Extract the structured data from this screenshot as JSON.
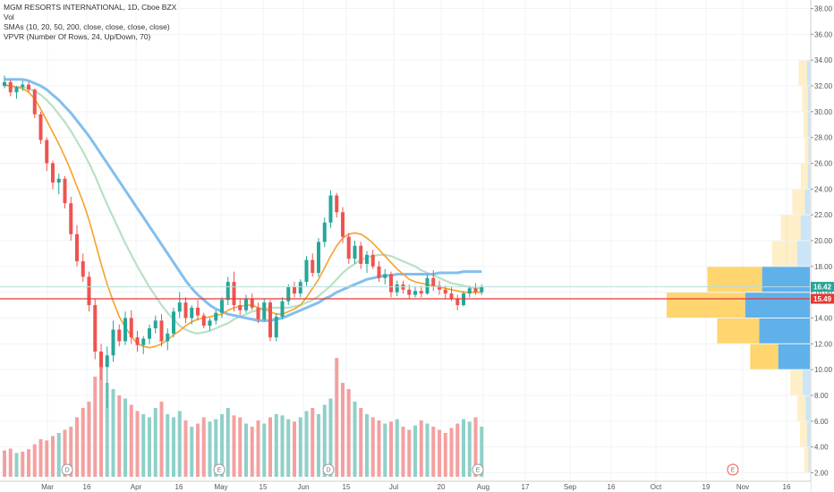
{
  "legend": {
    "title": "MGM RESORTS INTERNATIONAL, 1D, Cboe BZX",
    "vol": "Vol",
    "smas": "SMAs (10, 20, 50, 200, close, close, close, close)",
    "vpvr": "VPVR (Number Of Rows, 24, Up/Down, 70)"
  },
  "colors": {
    "up": "#26a69a",
    "down": "#ef5350",
    "vol_up": "#8fd0c8",
    "vol_down": "#f4a0a0",
    "sma10": "#f7a12b",
    "sma20": "#b9e0c4",
    "sma50": "#82bfee",
    "last_price": "#26a69a",
    "ref_price": "#e53935",
    "vp_up": "#4fa8e8",
    "vp_down": "#ffd060"
  },
  "chart_data": {
    "type": "candlestick",
    "y_ticks": [
      "2.00",
      "4.00",
      "6.00",
      "8.00",
      "10.00",
      "12.00",
      "14.00",
      "16.00",
      "18.00",
      "20.00",
      "22.00",
      "24.00",
      "26.00",
      "28.00",
      "30.00",
      "32.00",
      "34.00",
      "36.00",
      "38.00"
    ],
    "ylim": [
      2,
      38
    ],
    "x_ticks": [
      "Mar",
      "16",
      "Apr",
      "16",
      "May",
      "15",
      "Jun",
      "15",
      "Jul",
      "20",
      "Aug",
      "17",
      "Sep",
      "16",
      "Oct",
      "19",
      "Nov",
      "16"
    ],
    "last_price": 16.42,
    "last_price_label": "16.42",
    "ref_price": 15.49,
    "ref_price_label": "15.49",
    "events": [
      {
        "label": "D",
        "date": "Mar"
      },
      {
        "label": "E",
        "date": "Apr-end"
      },
      {
        "label": "D",
        "date": "Jun"
      },
      {
        "label": "E",
        "date": "Jul-end"
      },
      {
        "label": "E",
        "date": "Oct-end"
      }
    ],
    "candles": [
      [
        32.0,
        32.8,
        31.8,
        32.3
      ],
      [
        32.3,
        32.5,
        31.2,
        31.5
      ],
      [
        31.5,
        32.0,
        31.0,
        31.9
      ],
      [
        31.9,
        32.4,
        31.6,
        32.1
      ],
      [
        32.1,
        32.3,
        31.5,
        31.7
      ],
      [
        31.7,
        31.8,
        29.5,
        29.8
      ],
      [
        29.8,
        30.0,
        27.5,
        27.8
      ],
      [
        27.8,
        28.0,
        25.4,
        26.0
      ],
      [
        26.0,
        26.2,
        24.0,
        24.5
      ],
      [
        24.5,
        25.2,
        23.6,
        24.8
      ],
      [
        24.8,
        25.0,
        22.5,
        22.9
      ],
      [
        22.9,
        23.4,
        20.0,
        20.5
      ],
      [
        20.5,
        21.2,
        18.0,
        18.4
      ],
      [
        18.4,
        19.0,
        16.8,
        17.2
      ],
      [
        17.2,
        17.6,
        14.5,
        15.0
      ],
      [
        15.0,
        15.5,
        10.8,
        11.4
      ],
      [
        11.4,
        12.0,
        9.2,
        10.2
      ],
      [
        10.2,
        11.8,
        7.0,
        11.1
      ],
      [
        11.1,
        13.8,
        10.6,
        13.1
      ],
      [
        13.1,
        13.5,
        11.8,
        12.2
      ],
      [
        12.2,
        14.5,
        11.9,
        14.0
      ],
      [
        14.0,
        14.6,
        12.0,
        12.5
      ],
      [
        12.5,
        13.0,
        11.4,
        11.9
      ],
      [
        11.9,
        12.6,
        11.2,
        12.4
      ],
      [
        12.4,
        13.5,
        12.0,
        13.2
      ],
      [
        13.2,
        14.2,
        12.8,
        13.8
      ],
      [
        13.8,
        14.3,
        11.8,
        12.2
      ],
      [
        12.2,
        13.2,
        11.5,
        12.8
      ],
      [
        12.8,
        14.8,
        12.5,
        14.5
      ],
      [
        14.5,
        16.0,
        14.0,
        15.2
      ],
      [
        15.2,
        15.6,
        13.6,
        14.0
      ],
      [
        14.0,
        15.0,
        13.5,
        14.8
      ],
      [
        14.8,
        15.4,
        13.8,
        14.2
      ],
      [
        14.2,
        14.4,
        13.2,
        13.4
      ],
      [
        13.4,
        14.0,
        13.0,
        13.8
      ],
      [
        13.8,
        14.6,
        13.5,
        14.4
      ],
      [
        14.4,
        15.6,
        14.0,
        15.4
      ],
      [
        15.4,
        17.2,
        15.0,
        16.8
      ],
      [
        16.8,
        17.6,
        14.5,
        15.0
      ],
      [
        15.0,
        15.5,
        14.2,
        14.6
      ],
      [
        14.6,
        15.8,
        14.4,
        15.5
      ],
      [
        15.5,
        15.9,
        14.6,
        14.8
      ],
      [
        14.8,
        15.2,
        13.6,
        13.9
      ],
      [
        13.9,
        15.5,
        13.7,
        15.2
      ],
      [
        15.2,
        15.4,
        12.2,
        12.5
      ],
      [
        12.5,
        14.4,
        12.2,
        14.1
      ],
      [
        14.1,
        15.6,
        13.9,
        15.3
      ],
      [
        15.3,
        16.6,
        15.0,
        16.4
      ],
      [
        16.4,
        16.8,
        15.6,
        15.9
      ],
      [
        15.9,
        17.0,
        15.6,
        16.8
      ],
      [
        16.8,
        18.8,
        16.5,
        18.5
      ],
      [
        18.5,
        19.0,
        17.2,
        17.5
      ],
      [
        17.5,
        20.2,
        17.2,
        19.9
      ],
      [
        19.9,
        21.8,
        19.5,
        21.4
      ],
      [
        21.4,
        23.9,
        21.0,
        23.5
      ],
      [
        23.5,
        23.7,
        21.8,
        22.2
      ],
      [
        22.2,
        22.6,
        19.8,
        20.3
      ],
      [
        20.3,
        20.6,
        18.2,
        18.6
      ],
      [
        18.6,
        20.0,
        18.2,
        19.6
      ],
      [
        19.6,
        19.9,
        17.8,
        18.2
      ],
      [
        18.2,
        19.2,
        17.5,
        18.9
      ],
      [
        18.9,
        19.3,
        17.8,
        18.0
      ],
      [
        18.0,
        18.4,
        16.8,
        17.1
      ],
      [
        17.1,
        17.8,
        16.6,
        17.4
      ],
      [
        17.4,
        17.6,
        15.6,
        16.0
      ],
      [
        16.0,
        16.9,
        15.7,
        16.6
      ],
      [
        16.6,
        16.9,
        15.9,
        16.2
      ],
      [
        16.2,
        16.6,
        15.5,
        15.8
      ],
      [
        15.8,
        16.4,
        15.6,
        16.1
      ],
      [
        16.1,
        16.5,
        15.6,
        15.9
      ],
      [
        15.9,
        17.4,
        15.8,
        17.1
      ],
      [
        17.1,
        17.7,
        16.1,
        16.5
      ],
      [
        16.5,
        16.9,
        15.8,
        16.2
      ],
      [
        16.2,
        16.5,
        15.5,
        15.9
      ],
      [
        15.9,
        16.4,
        15.3,
        15.5
      ],
      [
        15.5,
        15.8,
        14.6,
        15.0
      ],
      [
        15.0,
        16.1,
        14.9,
        15.9
      ],
      [
        15.9,
        16.5,
        15.6,
        16.3
      ],
      [
        16.3,
        16.7,
        15.8,
        16.0
      ],
      [
        16.0,
        16.6,
        15.8,
        16.42
      ]
    ],
    "volume": [
      42,
      45,
      38,
      40,
      44,
      52,
      60,
      58,
      65,
      70,
      75,
      80,
      95,
      110,
      120,
      160,
      185,
      150,
      140,
      130,
      125,
      115,
      105,
      100,
      95,
      110,
      120,
      100,
      95,
      105,
      90,
      80,
      85,
      95,
      88,
      92,
      100,
      110,
      98,
      95,
      85,
      80,
      90,
      85,
      95,
      100,
      98,
      92,
      88,
      95,
      105,
      110,
      100,
      115,
      125,
      190,
      150,
      140,
      120,
      110,
      100,
      95,
      90,
      85,
      88,
      92,
      80,
      75,
      82,
      90,
      85,
      80,
      75,
      70,
      78,
      85,
      92,
      88,
      95,
      80
    ],
    "volume_up": [
      false,
      false,
      true,
      false,
      false,
      false,
      false,
      false,
      false,
      true,
      false,
      false,
      false,
      false,
      false,
      false,
      false,
      true,
      true,
      false,
      true,
      false,
      false,
      true,
      true,
      true,
      false,
      true,
      true,
      true,
      false,
      true,
      false,
      false,
      true,
      true,
      true,
      true,
      false,
      false,
      true,
      false,
      false,
      true,
      false,
      true,
      true,
      true,
      false,
      true,
      true,
      false,
      true,
      true,
      true,
      false,
      false,
      false,
      true,
      false,
      true,
      false,
      false,
      true,
      false,
      true,
      false,
      false,
      true,
      false,
      true,
      false,
      false,
      false,
      false,
      false,
      true,
      true,
      false,
      true
    ],
    "sma10": [
      32.1,
      32.0,
      31.9,
      31.8,
      31.5,
      31.0,
      30.2,
      29.3,
      28.4,
      27.5,
      26.5,
      25.4,
      24.2,
      23.0,
      21.6,
      19.9,
      18.2,
      16.6,
      15.3,
      14.1,
      13.3,
      12.6,
      12.0,
      11.8,
      11.7,
      11.8,
      12.0,
      12.3,
      12.7,
      13.0,
      13.4,
      13.7,
      13.9,
      14.0,
      14.1,
      14.2,
      14.3,
      14.6,
      14.8,
      14.9,
      15.0,
      15.0,
      14.8,
      14.7,
      14.5,
      14.3,
      14.3,
      14.5,
      14.7,
      15.0,
      15.6,
      16.3,
      17.0,
      17.9,
      18.8,
      19.6,
      20.2,
      20.5,
      20.6,
      20.5,
      20.2,
      19.8,
      19.3,
      18.8,
      18.3,
      17.8,
      17.4,
      17.0,
      16.8,
      16.7,
      16.6,
      16.5,
      16.4,
      16.3,
      16.2,
      16.1,
      16.0,
      16.0,
      16.0,
      16.0
    ],
    "sma20": [
      32.0,
      32.0,
      31.9,
      31.9,
      31.8,
      31.6,
      31.3,
      30.9,
      30.4,
      29.8,
      29.2,
      28.5,
      27.7,
      26.9,
      26.0,
      25.0,
      23.9,
      22.8,
      21.8,
      20.8,
      19.8,
      18.9,
      18.0,
      17.2,
      16.4,
      15.7,
      15.0,
      14.4,
      13.9,
      13.4,
      13.1,
      12.9,
      12.8,
      12.9,
      13.0,
      13.2,
      13.4,
      13.6,
      13.9,
      14.1,
      14.3,
      14.5,
      14.6,
      14.7,
      14.8,
      14.8,
      14.8,
      14.8,
      14.9,
      15.0,
      15.2,
      15.4,
      15.7,
      16.1,
      16.5,
      17.0,
      17.5,
      17.9,
      18.2,
      18.5,
      18.7,
      18.8,
      18.9,
      18.9,
      18.8,
      18.6,
      18.4,
      18.2,
      18.0,
      17.7,
      17.5,
      17.3,
      17.1,
      16.9,
      16.7,
      16.6,
      16.5,
      16.4,
      16.3,
      16.3
    ],
    "sma50": [
      32.5,
      32.5,
      32.5,
      32.5,
      32.4,
      32.2,
      32.0,
      31.7,
      31.3,
      30.9,
      30.4,
      29.9,
      29.3,
      28.7,
      28.1,
      27.4,
      26.7,
      26.0,
      25.3,
      24.6,
      23.9,
      23.2,
      22.5,
      21.8,
      21.1,
      20.4,
      19.7,
      19.0,
      18.3,
      17.6,
      16.9,
      16.3,
      15.8,
      15.4,
      15.0,
      14.7,
      14.5,
      14.3,
      14.2,
      14.1,
      14.0,
      13.9,
      13.8,
      13.8,
      13.8,
      13.9,
      14.0,
      14.2,
      14.4,
      14.6,
      14.8,
      15.0,
      15.2,
      15.5,
      15.7,
      16.0,
      16.2,
      16.4,
      16.6,
      16.8,
      17.0,
      17.1,
      17.2,
      17.3,
      17.3,
      17.4,
      17.4,
      17.4,
      17.4,
      17.4,
      17.4,
      17.4,
      17.5,
      17.5,
      17.5,
      17.5,
      17.6,
      17.6,
      17.6,
      17.6
    ],
    "volume_profile": [
      {
        "price": 33.0,
        "up": 4,
        "down": 12
      },
      {
        "price": 31.0,
        "up": 3,
        "down": 8
      },
      {
        "price": 29.0,
        "up": 3,
        "down": 6
      },
      {
        "price": 27.0,
        "up": 2,
        "down": 5
      },
      {
        "price": 25.0,
        "up": 3,
        "down": 10
      },
      {
        "price": 23.0,
        "up": 7,
        "down": 18
      },
      {
        "price": 21.0,
        "up": 13,
        "down": 28
      },
      {
        "price": 19.0,
        "up": 18,
        "down": 36
      },
      {
        "price": 17.0,
        "up": 68,
        "down": 78
      },
      {
        "price": 15.0,
        "up": 92,
        "down": 112
      },
      {
        "price": 13.0,
        "up": 72,
        "down": 60
      },
      {
        "price": 11.0,
        "up": 45,
        "down": 40
      },
      {
        "price": 9.0,
        "up": 10,
        "down": 18
      },
      {
        "price": 7.0,
        "up": 6,
        "down": 12
      },
      {
        "price": 5.0,
        "up": 4,
        "down": 10
      },
      {
        "price": 3.0,
        "up": 2,
        "down": 6
      }
    ]
  }
}
